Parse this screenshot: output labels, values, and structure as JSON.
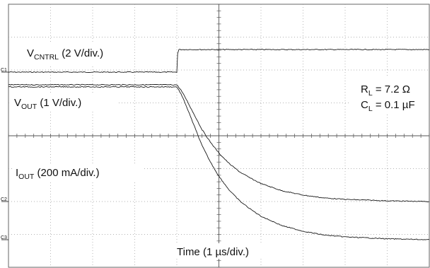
{
  "chart_data": {
    "type": "line",
    "title": "",
    "xlabel": "Time (1 µs/div.)",
    "x_unit": "µs",
    "xlim": [
      0,
      10
    ],
    "grid": true,
    "divisions": {
      "x": 10,
      "y": 8
    },
    "series": [
      {
        "id": "vcntrl",
        "channel": "C1",
        "label_main": "V",
        "label_sub": "CNTRL",
        "label_rest": " (2 V/div.)",
        "scale": "2 V/div.",
        "x": [
          0,
          4.0,
          4.02,
          4.05,
          10
        ],
        "y_div": [
          0.0,
          0.0,
          1.2,
          1.45,
          1.45
        ]
      },
      {
        "id": "vout",
        "channel": "C2",
        "label_main": "V",
        "label_sub": "OUT",
        "label_rest": " (1 V/div.)",
        "scale": "1 V/div.",
        "x": [
          0,
          4.0,
          4.1,
          4.2,
          4.4,
          4.6,
          4.8,
          5.0,
          5.25,
          5.5,
          5.75,
          6.0,
          6.5,
          7.0,
          7.5,
          8.0,
          9.0,
          10
        ],
        "y_div": [
          3.25,
          3.25,
          3.1,
          2.9,
          2.45,
          2.0,
          1.65,
          1.35,
          1.05,
          0.82,
          0.65,
          0.5,
          0.3,
          0.18,
          0.1,
          0.06,
          0.02,
          0.0
        ]
      },
      {
        "id": "iout",
        "channel": "C3",
        "label_main": "I",
        "label_sub": "OUT",
        "label_rest": " (200 mA/div.)",
        "scale": "200 mA/div.",
        "x": [
          0,
          4.0,
          4.1,
          4.2,
          4.4,
          4.6,
          4.8,
          5.0,
          5.25,
          5.5,
          5.75,
          6.0,
          6.5,
          7.0,
          7.5,
          8.0,
          9.0,
          10
        ],
        "y_div": [
          3.25,
          3.25,
          3.1,
          2.9,
          2.45,
          2.0,
          1.65,
          1.35,
          1.05,
          0.82,
          0.65,
          0.5,
          0.3,
          0.18,
          0.1,
          0.06,
          0.02,
          0.0
        ]
      }
    ],
    "annotations": [
      {
        "main": "R",
        "sub": "L",
        "rest": " = 7.2 Ω"
      },
      {
        "main": "C",
        "sub": "L",
        "rest": " = 0.1 µF"
      }
    ]
  }
}
